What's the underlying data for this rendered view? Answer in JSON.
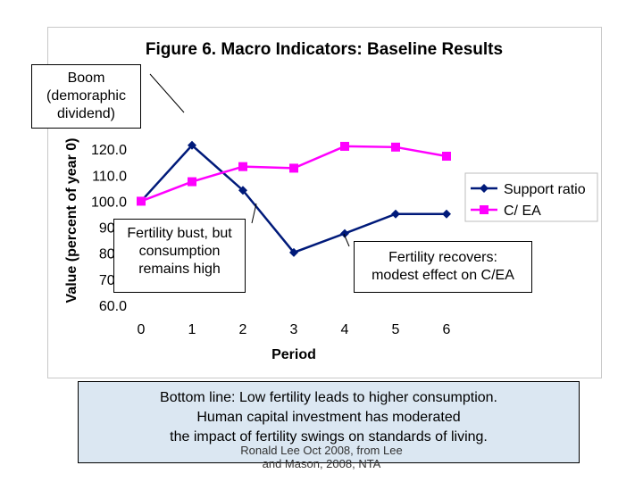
{
  "chart_data": {
    "type": "line",
    "title": "Figure 6. Macro Indicators: Baseline Results",
    "xlabel": "Period",
    "ylabel": "Value (percent of year 0)",
    "x": [
      0,
      1,
      2,
      3,
      4,
      5,
      6
    ],
    "ylim": [
      60,
      130
    ],
    "yticks": [
      "60.0",
      "70.0",
      "80.0",
      "90.0",
      "100.0",
      "110.0",
      "120.0"
    ],
    "ytick_values": [
      60,
      70,
      80,
      90,
      100,
      110,
      120
    ],
    "series": [
      {
        "name": "Support ratio",
        "color": "#001a7a",
        "marker": "diamond",
        "values": [
          100.0,
          121.5,
          104.2,
          80.3,
          87.6,
          95.1,
          95.1
        ]
      },
      {
        "name": "C/ EA",
        "color": "#ff00ff",
        "marker": "square",
        "values": [
          100.0,
          107.5,
          113.3,
          112.7,
          121.1,
          120.8,
          117.3
        ]
      }
    ]
  },
  "annotations": {
    "boom": "Boom\n(demoraphic\ndividend)",
    "bust": "Fertility bust, but\nconsumption\nremains high",
    "recover": "Fertility recovers:\nmodest effect on C/EA"
  },
  "bottom_line": "Bottom line:  Low fertility leads to higher consumption.\nHuman capital investment has moderated\nthe impact of fertility swings on standards of living.",
  "credit": "Ronald Lee Oct 2008, from Lee\nand Mason, 2008, NTA"
}
